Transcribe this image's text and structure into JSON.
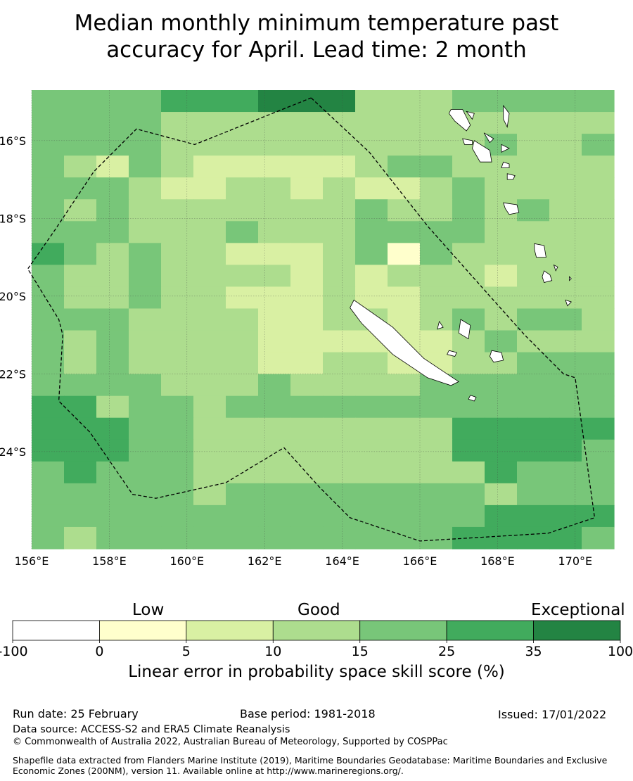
{
  "title_line1": "Median monthly minimum temperature past",
  "title_line2": "accuracy for April. Lead time: 2 month",
  "map": {
    "lon_range": [
      156,
      171
    ],
    "lat_range": [
      -26.5,
      -14.7
    ],
    "lon_ticks": [
      156,
      158,
      160,
      162,
      164,
      166,
      168,
      170
    ],
    "lat_ticks": [
      -16,
      -18,
      -20,
      -22,
      -24
    ],
    "lon_tick_labels": [
      "156°E",
      "158°E",
      "160°E",
      "162°E",
      "164°E",
      "166°E",
      "168°E",
      "170°E"
    ],
    "lat_tick_labels": [
      "16°S",
      "18°S",
      "20°S",
      "22°S",
      "24°S"
    ],
    "grid": true,
    "palette": [
      "#ffffff",
      "#ffffcc",
      "#d9f0a3",
      "#addd8e",
      "#78c679",
      "#41ab5d",
      "#238443"
    ],
    "eez_boundary": [
      [
        163.2,
        -14.9
      ],
      [
        164.7,
        -16.3
      ],
      [
        166.2,
        -18.2
      ],
      [
        167.8,
        -20.0
      ],
      [
        168.7,
        -21.0
      ],
      [
        169.7,
        -22.0
      ],
      [
        170.0,
        -22.1
      ],
      [
        170.5,
        -25.7
      ],
      [
        169.3,
        -26.1
      ],
      [
        166.0,
        -26.3
      ],
      [
        164.2,
        -25.7
      ],
      [
        163.4,
        -24.9
      ],
      [
        162.5,
        -23.9
      ],
      [
        161.0,
        -24.8
      ],
      [
        159.2,
        -25.2
      ],
      [
        158.6,
        -25.1
      ],
      [
        157.5,
        -23.5
      ],
      [
        156.7,
        -22.7
      ],
      [
        156.8,
        -21.0
      ],
      [
        156.7,
        -20.6
      ],
      [
        155.9,
        -19.3
      ],
      [
        156.6,
        -18.3
      ],
      [
        157.6,
        -16.8
      ],
      [
        158.7,
        -15.7
      ],
      [
        160.2,
        -16.1
      ],
      [
        163.2,
        -14.9
      ]
    ],
    "land": [
      [
        [
          164.3,
          -20.1
        ],
        [
          165.3,
          -20.8
        ],
        [
          166.1,
          -21.6
        ],
        [
          166.7,
          -22.0
        ],
        [
          167.0,
          -22.2
        ],
        [
          166.8,
          -22.3
        ],
        [
          166.2,
          -22.1
        ],
        [
          165.3,
          -21.5
        ],
        [
          164.5,
          -20.7
        ],
        [
          164.2,
          -20.3
        ]
      ],
      [
        [
          167.05,
          -20.6
        ],
        [
          167.3,
          -20.75
        ],
        [
          167.25,
          -21.1
        ],
        [
          167.0,
          -20.95
        ]
      ],
      [
        [
          166.5,
          -20.65
        ],
        [
          166.6,
          -20.8
        ],
        [
          166.45,
          -20.85
        ]
      ],
      [
        [
          166.75,
          -21.4
        ],
        [
          166.95,
          -21.45
        ],
        [
          166.9,
          -21.55
        ],
        [
          166.7,
          -21.5
        ]
      ],
      [
        [
          167.85,
          -21.4
        ],
        [
          168.1,
          -21.45
        ],
        [
          168.15,
          -21.65
        ],
        [
          167.9,
          -21.7
        ],
        [
          167.8,
          -21.55
        ]
      ],
      [
        [
          167.3,
          -22.55
        ],
        [
          167.45,
          -22.6
        ],
        [
          167.4,
          -22.7
        ],
        [
          167.25,
          -22.65
        ]
      ],
      [
        [
          166.8,
          -15.2
        ],
        [
          167.1,
          -15.2
        ],
        [
          167.3,
          -15.6
        ],
        [
          167.2,
          -15.75
        ],
        [
          166.9,
          -15.5
        ],
        [
          166.75,
          -15.3
        ]
      ],
      [
        [
          167.2,
          -15.25
        ],
        [
          167.4,
          -15.3
        ],
        [
          167.35,
          -15.45
        ]
      ],
      [
        [
          168.15,
          -15.1
        ],
        [
          168.3,
          -15.3
        ],
        [
          168.25,
          -15.65
        ],
        [
          168.15,
          -15.45
        ]
      ],
      [
        [
          167.65,
          -15.8
        ],
        [
          167.9,
          -15.95
        ],
        [
          167.8,
          -16.05
        ]
      ],
      [
        [
          167.1,
          -15.95
        ],
        [
          167.35,
          -16.0
        ],
        [
          167.35,
          -16.1
        ],
        [
          167.15,
          -16.1
        ]
      ],
      [
        [
          167.4,
          -16.0
        ],
        [
          167.8,
          -16.25
        ],
        [
          167.85,
          -16.55
        ],
        [
          167.55,
          -16.55
        ],
        [
          167.35,
          -16.2
        ]
      ],
      [
        [
          168.1,
          -16.1
        ],
        [
          168.3,
          -16.2
        ],
        [
          168.1,
          -16.3
        ]
      ],
      [
        [
          168.15,
          -16.55
        ],
        [
          168.3,
          -16.6
        ],
        [
          168.3,
          -16.7
        ],
        [
          168.1,
          -16.7
        ]
      ],
      [
        [
          168.25,
          -16.85
        ],
        [
          168.45,
          -16.9
        ],
        [
          168.4,
          -17.0
        ],
        [
          168.25,
          -17.0
        ]
      ],
      [
        [
          168.15,
          -17.6
        ],
        [
          168.5,
          -17.65
        ],
        [
          168.55,
          -17.85
        ],
        [
          168.3,
          -17.9
        ],
        [
          168.2,
          -17.75
        ]
      ],
      [
        [
          168.95,
          -18.65
        ],
        [
          169.2,
          -18.7
        ],
        [
          169.25,
          -19.0
        ],
        [
          169.0,
          -19.0
        ],
        [
          168.95,
          -18.8
        ]
      ],
      [
        [
          169.2,
          -19.35
        ],
        [
          169.35,
          -19.45
        ],
        [
          169.4,
          -19.6
        ],
        [
          169.2,
          -19.65
        ],
        [
          169.15,
          -19.5
        ]
      ],
      [
        [
          169.75,
          -20.1
        ],
        [
          169.9,
          -20.15
        ],
        [
          169.8,
          -20.25
        ]
      ],
      [
        [
          169.45,
          -19.2
        ],
        [
          169.55,
          -19.25
        ],
        [
          169.5,
          -19.35
        ]
      ],
      [
        [
          169.85,
          -19.5
        ],
        [
          169.9,
          -19.55
        ],
        [
          169.85,
          -19.6
        ]
      ]
    ]
  },
  "colorbar": {
    "categories": [
      "Low",
      "Good",
      "Exceptional"
    ],
    "tick_labels": [
      "-100",
      "0",
      "5",
      "10",
      "15",
      "25",
      "35",
      "100"
    ],
    "label": "Linear error in probability space skill score (%)"
  },
  "footer": {
    "run_date": "Run date: 25 February",
    "base_period": "Base period: 1981-2018",
    "issued": "Issued: 17/01/2022",
    "data_source": "Data source: ACCESS-S2 and ERA5 Climate Reanalysis",
    "copyright": "© Commonwealth of Australia 2022, Australian Bureau of Meteorology, Supported by COSPPac",
    "shapefile_note": "Shapefile data extracted from Flanders Marine Institute (2019), Maritime Boundaries Geodatabase: Maritime Boundaries and Exclusive Economic Zones (200NM), version 11. Available online at http://www.marineregions.org/."
  }
}
